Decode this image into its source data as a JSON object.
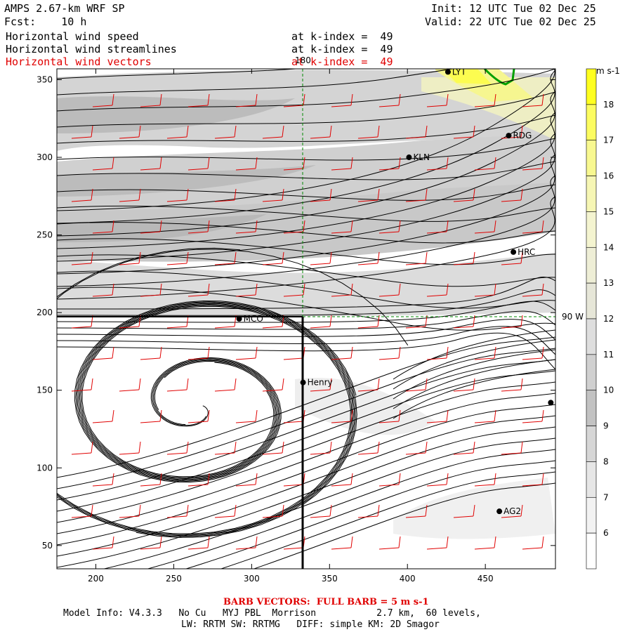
{
  "header": {
    "model_title": "AMPS 2.67-km WRF SP",
    "init_label": "Init: 12 UTC Tue 02 Dec 25",
    "fcst_label": "Fcst:    10 h",
    "valid_label": "Valid: 22 UTC Tue 02 Dec 25"
  },
  "fields": [
    {
      "name": "Horizontal wind speed",
      "level": "at k-index =  49",
      "color": "#000000"
    },
    {
      "name": "Horizontal wind streamlines",
      "level": "at k-index =  49",
      "color": "#000000"
    },
    {
      "name": "Horizontal wind vectors",
      "level": "at k-index =  49",
      "color": "#e00000"
    }
  ],
  "axes": {
    "x_ticks": [
      "200",
      "250",
      "300",
      "350",
      "400",
      "450"
    ],
    "y_ticks": [
      "350",
      "300",
      "250",
      "200",
      "150",
      "100",
      "50"
    ],
    "x_range": [
      175,
      495
    ],
    "y_range": [
      35,
      357
    ]
  },
  "map_labels": {
    "lon_180": "180",
    "lat_90w": "90 W"
  },
  "stations": [
    {
      "name": "LYT",
      "x": 426,
      "y": 355
    },
    {
      "name": "RDG",
      "x": 465,
      "y": 314
    },
    {
      "name": "KLN",
      "x": 401,
      "y": 300
    },
    {
      "name": "HRC",
      "x": 468,
      "y": 239
    },
    {
      "name": "MCO",
      "x": 292,
      "y": 196
    },
    {
      "name": "Henry",
      "x": 333,
      "y": 155
    },
    {
      "name": "",
      "x": 492,
      "y": 142
    },
    {
      "name": "AG2",
      "x": 459,
      "y": 72
    }
  ],
  "colorbar": {
    "unit": "m s-1",
    "labels": [
      "18",
      "17",
      "16",
      "15",
      "14",
      "13",
      "12",
      "11",
      "10",
      "9",
      "8",
      "7",
      "6"
    ],
    "colors": [
      "#ffff20",
      "#fcfc60",
      "#f8f890",
      "#f6f6b4",
      "#f4f4d0",
      "#eeeed6",
      "#e6e6d8",
      "#dedede",
      "#d0d0d0",
      "#c2c2c2",
      "#d6d6d6",
      "#e6e6e6",
      "#f2f2f2",
      "#ffffff"
    ]
  },
  "footer": {
    "barb_note": "BARB VECTORS:  FULL BARB = 5 m s-1",
    "model_info": "Model Info: V4.3.3   No Cu   MYJ PBL  Morrison           2.7 km,  60 levels,",
    "physics_info": "LW: RRTM SW: RRTMG   DIFF: simple KM: 2D Smagor"
  }
}
